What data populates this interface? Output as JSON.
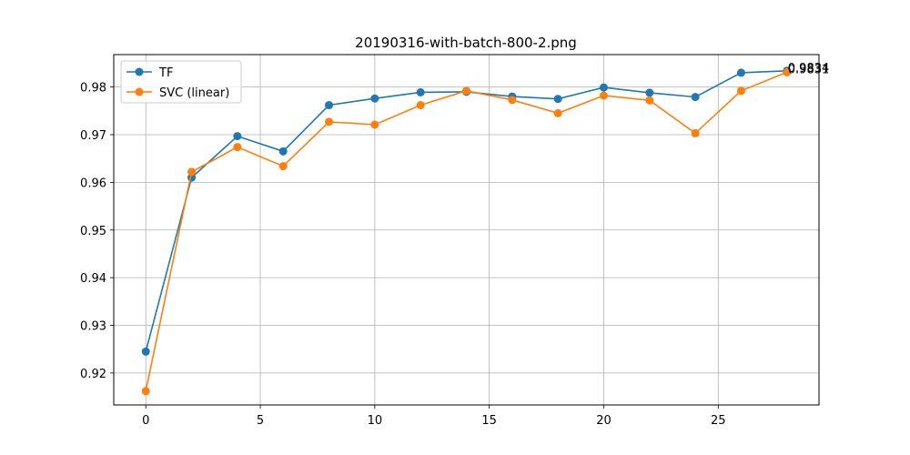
{
  "chart_data": {
    "type": "line",
    "title": "20190316-with-batch-800-2.png",
    "xlabel": "",
    "ylabel": "",
    "x": [
      0,
      2,
      4,
      6,
      8,
      10,
      12,
      14,
      16,
      18,
      20,
      22,
      24,
      26,
      28
    ],
    "xlim": [
      -1.4,
      29.4
    ],
    "ylim": [
      0.9133,
      0.9868
    ],
    "xticks": [
      0,
      5,
      10,
      15,
      20,
      25
    ],
    "yticks": [
      0.92,
      0.93,
      0.94,
      0.95,
      0.96,
      0.97,
      0.98
    ],
    "ytick_labels": [
      "0.92",
      "0.93",
      "0.94",
      "0.95",
      "0.96",
      "0.97",
      "0.98"
    ],
    "grid": true,
    "legend_position": "top-left",
    "series": [
      {
        "name": "TF",
        "color": "#1f77b4",
        "values": [
          0.9245,
          0.961,
          0.9697,
          0.9665,
          0.9762,
          0.9776,
          0.9789,
          0.979,
          0.978,
          0.9775,
          0.9799,
          0.9788,
          0.9779,
          0.983,
          0.9834
        ],
        "end_label": "0.9834"
      },
      {
        "name": "SVC (linear)",
        "color": "#ff7f0e",
        "values": [
          0.9162,
          0.9622,
          0.9674,
          0.9634,
          0.9727,
          0.9721,
          0.9762,
          0.9792,
          0.9773,
          0.9745,
          0.9782,
          0.9772,
          0.9703,
          0.9792,
          0.9831
        ],
        "end_label": "0.9831"
      }
    ]
  }
}
